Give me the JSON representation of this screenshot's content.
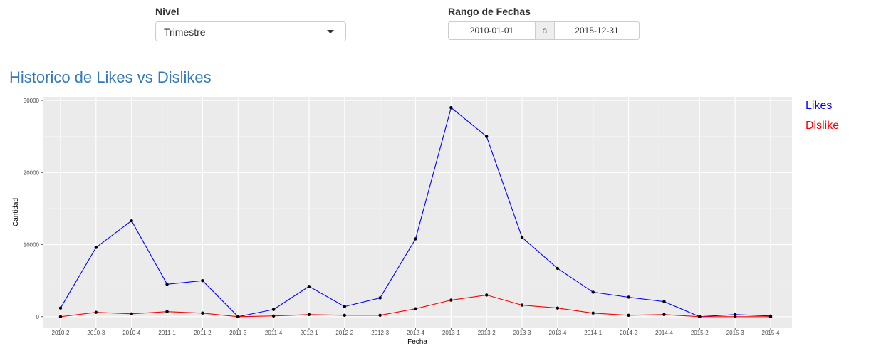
{
  "controls": {
    "nivel_label": "Nivel",
    "nivel_value": "Trimestre",
    "rango_label": "Rango de Fechas",
    "date_start": "2010-01-01",
    "date_sep": "a",
    "date_end": "2015-12-31"
  },
  "title": "Historico de Likes vs Dislikes",
  "colors": {
    "accent": "#337ab7",
    "likes": "#0000ff",
    "dislike": "#ff0000",
    "panel": "#ebebeb"
  },
  "chart_data": {
    "type": "line",
    "categories": [
      "2010-2",
      "2010-3",
      "2010-4",
      "2011-1",
      "2011-2",
      "2011-3",
      "2011-4",
      "2012-1",
      "2012-2",
      "2012-3",
      "2012-4",
      "2013-1",
      "2013-2",
      "2013-3",
      "2013-4",
      "2014-1",
      "2014-2",
      "2014-4",
      "2015-2",
      "2015-3",
      "2015-4"
    ],
    "series": [
      {
        "name": "Likes",
        "color": "#0000ff",
        "values": [
          1200,
          9600,
          13300,
          4500,
          5000,
          0,
          1000,
          4200,
          1400,
          2600,
          10800,
          29000,
          25000,
          11000,
          6700,
          3400,
          2700,
          2100,
          0,
          300,
          100
        ]
      },
      {
        "name": "Dislike",
        "color": "#ff0000",
        "values": [
          0,
          600,
          400,
          700,
          500,
          0,
          100,
          300,
          200,
          200,
          1100,
          2300,
          3000,
          1600,
          1200,
          500,
          200,
          300,
          0,
          0,
          0
        ]
      }
    ],
    "xlabel": "Fecha",
    "ylabel": "Cantidad",
    "yticks": [
      0,
      10000,
      20000,
      30000
    ],
    "ylim": [
      -1500,
      30500
    ],
    "grid": true,
    "legend_position": "right"
  }
}
